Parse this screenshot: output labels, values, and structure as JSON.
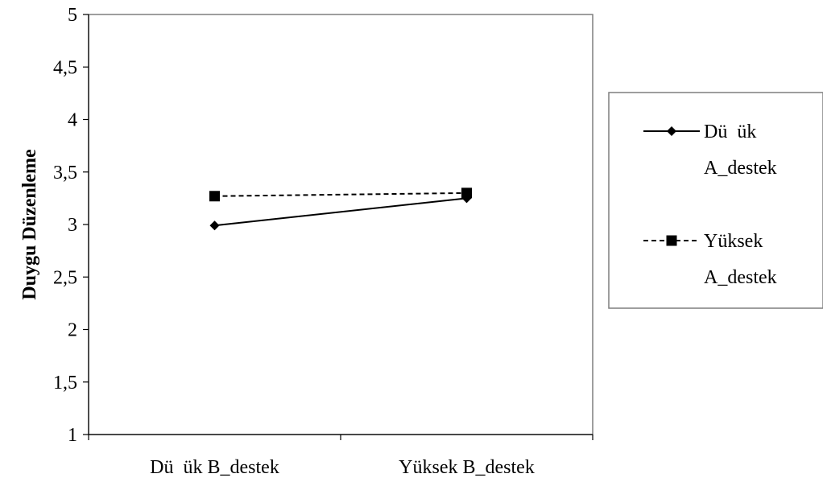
{
  "chart_data": {
    "type": "line",
    "title": "",
    "xlabel": "",
    "ylabel": "Duygu Düzenleme",
    "categories": [
      "Dü  ük B_destek",
      "Yüksek B_destek"
    ],
    "ylim": [
      1,
      5
    ],
    "yticks": [
      1,
      1.5,
      2,
      2.5,
      3,
      3.5,
      4,
      4.5,
      5
    ],
    "ytick_labels": [
      "1",
      "1,5",
      "2",
      "2,5",
      "3",
      "3,5",
      "4",
      "4,5",
      "5"
    ],
    "grid": false,
    "legend_position": "right",
    "series": [
      {
        "name": "Dü  ük A_destek",
        "name_lines": [
          "Dü  ük",
          "A_destek"
        ],
        "values": [
          2.99,
          3.25
        ],
        "marker": "diamond",
        "line_style": "solid",
        "color": "#000000"
      },
      {
        "name": "Yüksek A_destek",
        "name_lines": [
          "Yüksek",
          "A_destek"
        ],
        "values": [
          3.27,
          3.3
        ],
        "marker": "square",
        "line_style": "dashed",
        "color": "#000000"
      }
    ]
  }
}
